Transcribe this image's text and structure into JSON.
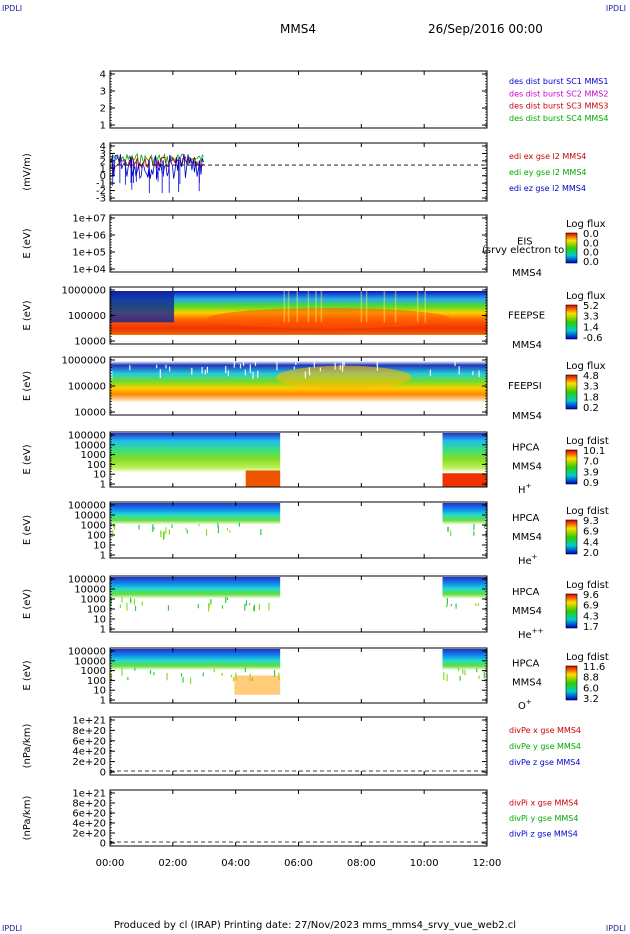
{
  "corners": {
    "tl": "IPDLI",
    "tr": "IPDLI",
    "bl": "IPDLI",
    "br": "IPDLI"
  },
  "header": {
    "spacecraft": "MMS4",
    "date": "26/Sep/2016 00:00"
  },
  "footer": {
    "text": "Produced by cl (IRAP)   Printing date: 27/Nov/2023   mms_mms4_srvy_vue_web2.cl"
  },
  "chart_data": [
    {
      "id": "p1",
      "type": "line",
      "ytick_labels": [
        "1",
        "2",
        "3",
        "4"
      ],
      "ylabel": "",
      "legend": [
        {
          "text": "des dist burst SC1 MMS1",
          "color": "#0000cc"
        },
        {
          "text": "des dist burst SC2 MMS2",
          "color": "#cc00cc"
        },
        {
          "text": "des dist burst SC3 MMS3",
          "color": "#cc0000"
        },
        {
          "text": "des dist burst SC4 MMS4",
          "color": "#00aa00"
        }
      ]
    },
    {
      "id": "p2",
      "type": "line",
      "ylabel": "(mV/m)",
      "ytick_labels": [
        "-3",
        "-2",
        "-1",
        "0",
        "1",
        "2",
        "3",
        "4"
      ],
      "dashed_zero": true,
      "legend": [
        {
          "text": "edi ex gse l2 MMS4",
          "color": "#cc0000"
        },
        {
          "text": "edi ey gse l2 MMS4",
          "color": "#00aa00"
        },
        {
          "text": "edi ez gse l2 MMS4",
          "color": "#0000cc"
        }
      ],
      "data_time_range": [
        "00:00",
        "03:00"
      ]
    },
    {
      "id": "p3",
      "type": "heatmap",
      "ylabel": "E (eV)",
      "ytick_labels": [
        "1e+04",
        "1e+05",
        "1e+06",
        "1e+07"
      ],
      "instrument": "EIS",
      "sc": "MMS4",
      "overlay_text": "(srvy electron to",
      "cbar_title": "Log flux",
      "cbar_labels": [
        "0.0",
        "0.0",
        "0.0",
        "0.0"
      ]
    },
    {
      "id": "p4",
      "type": "heatmap",
      "ylabel": "E (eV)",
      "ytick_labels": [
        "10000",
        "100000",
        "1000000"
      ],
      "instrument": "FEEPSE",
      "sc": "MMS4",
      "cbar_title": "Log flux",
      "cbar_labels": [
        "5.2",
        "3.3",
        "1.4",
        "-0.6"
      ]
    },
    {
      "id": "p5",
      "type": "heatmap",
      "ylabel": "E (eV)",
      "ytick_labels": [
        "10000",
        "100000",
        "1000000"
      ],
      "instrument": "FEEPSI",
      "sc": "MMS4",
      "cbar_title": "Log flux",
      "cbar_labels": [
        "4.8",
        "3.3",
        "1.8",
        "0.2"
      ]
    },
    {
      "id": "p6",
      "type": "heatmap",
      "ylabel": "E (eV)",
      "ytick_labels": [
        "1",
        "10",
        "100",
        "1000",
        "10000",
        "100000"
      ],
      "instrument": "HPCA",
      "sc": "MMS4",
      "species": "H",
      "species_sup": "+",
      "cbar_title": "Log fdist",
      "cbar_labels": [
        "10.1",
        "7.0",
        "3.9",
        "0.9"
      ]
    },
    {
      "id": "p7",
      "type": "heatmap",
      "ylabel": "E (eV)",
      "ytick_labels": [
        "1",
        "10",
        "100",
        "1000",
        "10000",
        "100000"
      ],
      "instrument": "HPCA",
      "sc": "MMS4",
      "species": "He",
      "species_sup": "+",
      "cbar_title": "Log fdist",
      "cbar_labels": [
        "9.3",
        "6.9",
        "4.4",
        "2.0"
      ]
    },
    {
      "id": "p8",
      "type": "heatmap",
      "ylabel": "E (eV)",
      "ytick_labels": [
        "1",
        "10",
        "100",
        "1000",
        "10000",
        "100000"
      ],
      "instrument": "HPCA",
      "sc": "MMS4",
      "species": "He",
      "species_sup": "++",
      "cbar_title": "Log fdist",
      "cbar_labels": [
        "9.6",
        "6.9",
        "4.3",
        "1.7"
      ]
    },
    {
      "id": "p9",
      "type": "heatmap",
      "ylabel": "E (eV)",
      "ytick_labels": [
        "1",
        "10",
        "100",
        "1000",
        "10000",
        "100000"
      ],
      "instrument": "HPCA",
      "sc": "MMS4",
      "species": "O",
      "species_sup": "+",
      "cbar_title": "Log fdist",
      "cbar_labels": [
        "11.6",
        "8.8",
        "6.0",
        "3.2"
      ]
    },
    {
      "id": "p10",
      "type": "line",
      "ylabel": "(nPa/km)",
      "ytick_labels": [
        "0",
        "2e+20",
        "4e+20",
        "6e+20",
        "8e+20",
        "1e+21"
      ],
      "dashed_zero": true,
      "legend": [
        {
          "text": "divPe x gse MMS4",
          "color": "#cc0000"
        },
        {
          "text": "divPe y gse MMS4",
          "color": "#00aa00"
        },
        {
          "text": "divPe z gse MMS4",
          "color": "#0000cc"
        }
      ]
    },
    {
      "id": "p11",
      "type": "line",
      "ylabel": "(nPa/km)",
      "ytick_labels": [
        "0",
        "2e+20",
        "4e+20",
        "6e+20",
        "8e+20",
        "1e+21"
      ],
      "dashed_zero": true,
      "legend": [
        {
          "text": "divPi x gse MMS4",
          "color": "#cc0000"
        },
        {
          "text": "divPi y gse MMS4",
          "color": "#00aa00"
        },
        {
          "text": "divPi z gse MMS4",
          "color": "#0000cc"
        }
      ]
    }
  ],
  "time_axis": {
    "labels": [
      "00:00",
      "02:00",
      "04:00",
      "06:00",
      "08:00",
      "10:00",
      "12:00"
    ]
  },
  "hpca_gap": {
    "start": "05:25",
    "end": "10:35"
  }
}
